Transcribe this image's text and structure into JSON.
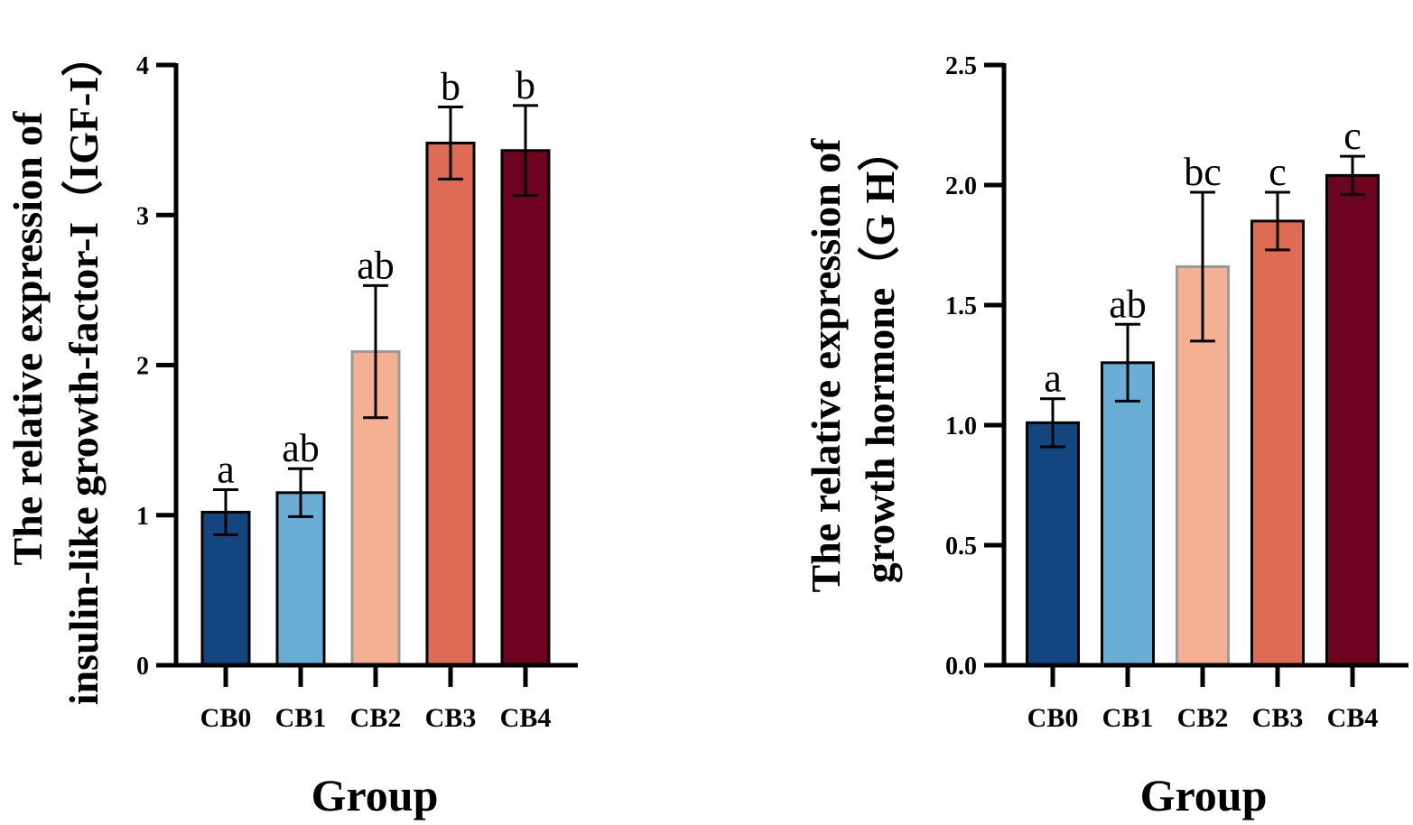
{
  "chart_data": [
    {
      "type": "bar",
      "categories": [
        "CB0",
        "CB1",
        "CB2",
        "CB3",
        "CB4"
      ],
      "values": [
        1.02,
        1.15,
        2.09,
        3.48,
        3.43
      ],
      "errors": [
        0.15,
        0.16,
        0.44,
        0.24,
        0.3
      ],
      "significance": [
        "a",
        "ab",
        "ab",
        "b",
        "b"
      ],
      "colors": [
        "#13467f",
        "#6aaed6",
        "#f4b092",
        "#de6c55",
        "#6d0321"
      ],
      "yticks": [
        "0",
        "1",
        "2",
        "3",
        "4"
      ],
      "ylim": [
        0,
        4
      ],
      "xlabel": "Group",
      "ylabel_line1": "The relative expression of",
      "ylabel_line2": "insulin-like growth-factor-I（IGF-I）"
    },
    {
      "type": "bar",
      "categories": [
        "CB0",
        "CB1",
        "CB2",
        "CB3",
        "CB4"
      ],
      "values": [
        1.01,
        1.26,
        1.66,
        1.85,
        2.04
      ],
      "errors": [
        0.1,
        0.16,
        0.31,
        0.12,
        0.08
      ],
      "significance": [
        "a",
        "ab",
        "bc",
        "c",
        "c"
      ],
      "colors": [
        "#13467f",
        "#6aaed6",
        "#f4b092",
        "#de6c55",
        "#6d0321"
      ],
      "yticks": [
        "0.0",
        "0.5",
        "1.0",
        "1.5",
        "2.0",
        "2.5"
      ],
      "ylim": [
        0,
        2.5
      ],
      "xlabel": "Group",
      "ylabel_line1": "The relative expression of",
      "ylabel_line2": "growth hormone（G H）"
    }
  ]
}
